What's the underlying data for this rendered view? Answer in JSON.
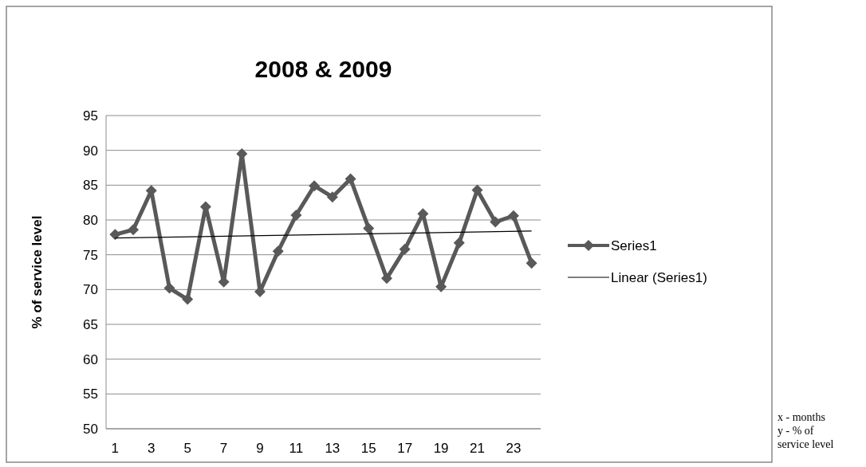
{
  "chart_data": {
    "type": "line",
    "title": "2008 & 2009",
    "ylabel": "% of service level",
    "x": [
      1,
      2,
      3,
      4,
      5,
      6,
      7,
      8,
      9,
      10,
      11,
      12,
      13,
      14,
      15,
      16,
      17,
      18,
      19,
      20,
      21,
      22,
      23,
      24
    ],
    "xlim": [
      0.5,
      24.5
    ],
    "xticks": [
      1,
      3,
      5,
      7,
      9,
      11,
      13,
      15,
      17,
      19,
      21,
      23
    ],
    "series": [
      {
        "name": "Series1",
        "color": "#595959",
        "marker": "diamond",
        "values": [
          77.9,
          78.6,
          84.2,
          70.2,
          68.6,
          81.9,
          71.1,
          89.5,
          69.7,
          75.5,
          80.7,
          84.9,
          83.3,
          85.9,
          78.8,
          71.6,
          75.8,
          80.9,
          70.4,
          76.7,
          84.3,
          79.7,
          80.6,
          73.8
        ]
      },
      {
        "name": "Linear (Series1)",
        "color": "#000000",
        "marker": "none",
        "x": [
          1,
          24
        ],
        "values": [
          77.4,
          78.4
        ]
      }
    ],
    "ylim": [
      50,
      95
    ],
    "yticks": [
      50,
      55,
      60,
      65,
      70,
      75,
      80,
      85,
      90,
      95
    ],
    "grid": "y",
    "legend": "right",
    "annotations": [
      "x - months\ny - % of\nservice level"
    ]
  }
}
